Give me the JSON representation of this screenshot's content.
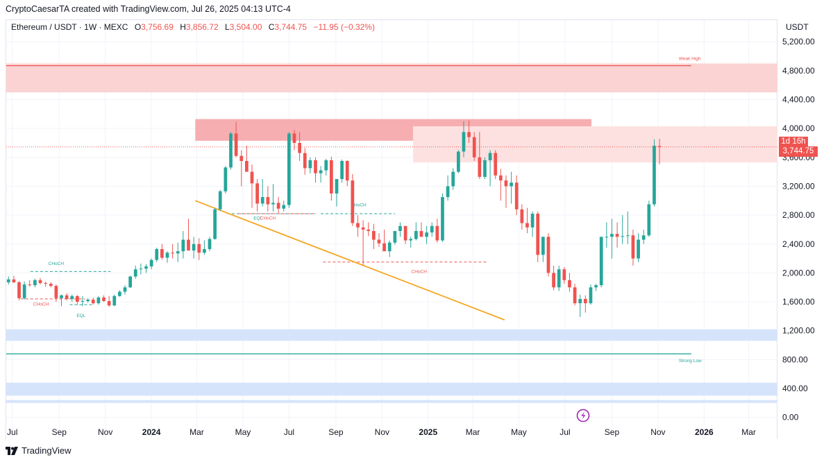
{
  "header": {
    "credit": "CryptoCaesarTA created with TradingView.com, Jul 26, 2025 04:13 UTC-4"
  },
  "legend": {
    "symbol": "Ethereum / USDT · 1W · MEXC",
    "open_label": "O",
    "open": "3,756.69",
    "high_label": "H",
    "high": "3,856.72",
    "low_label": "L",
    "low": "3,504.00",
    "close_label": "C",
    "close": "3,744.75",
    "change": "−11.95 (−0.32%)"
  },
  "currency": "USDT",
  "badges": {
    "countdown": "1d 16h",
    "last_price": "3,744.75"
  },
  "footer": {
    "brand": "TradingView"
  },
  "colors": {
    "up": "#26a69a",
    "down": "#ef5350",
    "trendline": "#f5a623",
    "supply_zone": "#fbd3d3",
    "demand_zone": "#d6e4fb",
    "grid": "#f0f3fa"
  },
  "chart_data": {
    "type": "candlestick",
    "symbol": "Ethereum / USDT",
    "interval": "1W",
    "exchange": "MEXC",
    "y_axis": {
      "position": "right",
      "range": [
        -80,
        5500
      ],
      "ticks": [
        "5,200.00",
        "4,800.00",
        "4,400.00",
        "4,000.00",
        "3,600.00",
        "3,200.00",
        "2,800.00",
        "2,400.00",
        "2,000.00",
        "1,600.00",
        "1,200.00",
        "800.00",
        "400.00",
        "0.00"
      ],
      "tick_values": [
        5200,
        4800,
        4400,
        4000,
        3600,
        3200,
        2800,
        2400,
        2000,
        1600,
        1200,
        800,
        400,
        0
      ]
    },
    "x_axis": {
      "range": [
        "2023-06-23",
        "2026-04-08"
      ],
      "ticks": [
        {
          "label": "Jul",
          "date": "2023-07-01",
          "bold": false
        },
        {
          "label": "Sep",
          "date": "2023-09-01",
          "bold": false
        },
        {
          "label": "Nov",
          "date": "2023-11-01",
          "bold": false
        },
        {
          "label": "2024",
          "date": "2024-01-01",
          "bold": true
        },
        {
          "label": "Mar",
          "date": "2024-03-01",
          "bold": false
        },
        {
          "label": "May",
          "date": "2024-05-01",
          "bold": false
        },
        {
          "label": "Jul",
          "date": "2024-07-01",
          "bold": false
        },
        {
          "label": "Sep",
          "date": "2024-09-01",
          "bold": false
        },
        {
          "label": "Nov",
          "date": "2024-11-01",
          "bold": false
        },
        {
          "label": "2025",
          "date": "2025-01-01",
          "bold": true
        },
        {
          "label": "Mar",
          "date": "2025-03-01",
          "bold": false
        },
        {
          "label": "May",
          "date": "2025-05-01",
          "bold": false
        },
        {
          "label": "Jul",
          "date": "2025-07-01",
          "bold": false
        },
        {
          "label": "Sep",
          "date": "2025-09-01",
          "bold": false
        },
        {
          "label": "Nov",
          "date": "2025-11-01",
          "bold": false
        },
        {
          "label": "2026",
          "date": "2026-01-01",
          "bold": true
        },
        {
          "label": "Mar",
          "date": "2026-03-01",
          "bold": false
        }
      ]
    },
    "grid": true,
    "first_candle_date": "2023-06-26",
    "candle_interval_days": 7,
    "candles": [
      [
        1870,
        1950,
        1840,
        1910
      ],
      [
        1910,
        1960,
        1860,
        1870
      ],
      [
        1870,
        1890,
        1620,
        1650
      ],
      [
        1650,
        1880,
        1630,
        1840
      ],
      [
        1840,
        1900,
        1810,
        1830
      ],
      [
        1830,
        1920,
        1800,
        1900
      ],
      [
        1900,
        1930,
        1840,
        1860
      ],
      [
        1860,
        1880,
        1810,
        1850
      ],
      [
        1850,
        1870,
        1800,
        1820
      ],
      [
        1820,
        1840,
        1600,
        1650
      ],
      [
        1650,
        1700,
        1540,
        1690
      ],
      [
        1690,
        1720,
        1620,
        1640
      ],
      [
        1640,
        1700,
        1600,
        1680
      ],
      [
        1680,
        1690,
        1560,
        1600
      ],
      [
        1600,
        1680,
        1540,
        1610
      ],
      [
        1610,
        1650,
        1590,
        1630
      ],
      [
        1630,
        1660,
        1560,
        1580
      ],
      [
        1580,
        1680,
        1560,
        1660
      ],
      [
        1660,
        1690,
        1600,
        1610
      ],
      [
        1610,
        1680,
        1530,
        1550
      ],
      [
        1550,
        1700,
        1540,
        1680
      ],
      [
        1680,
        1760,
        1670,
        1740
      ],
      [
        1740,
        1830,
        1700,
        1800
      ],
      [
        1800,
        1960,
        1790,
        1950
      ],
      [
        1950,
        2100,
        1920,
        2050
      ],
      [
        2050,
        2130,
        1980,
        2060
      ],
      [
        2060,
        2120,
        2000,
        2090
      ],
      [
        2090,
        2200,
        2050,
        2180
      ],
      [
        2180,
        2350,
        2150,
        2330
      ],
      [
        2330,
        2400,
        2180,
        2210
      ],
      [
        2210,
        2300,
        2140,
        2280
      ],
      [
        2280,
        2400,
        2200,
        2270
      ],
      [
        2270,
        2420,
        2150,
        2300
      ],
      [
        2300,
        2580,
        2200,
        2460
      ],
      [
        2460,
        2750,
        2340,
        2310
      ],
      [
        2310,
        2500,
        2200,
        2400
      ],
      [
        2400,
        2480,
        2180,
        2280
      ],
      [
        2280,
        2450,
        2250,
        2330
      ],
      [
        2330,
        2500,
        2300,
        2470
      ],
      [
        2470,
        2900,
        2460,
        2880
      ],
      [
        2880,
        3150,
        2860,
        3130
      ],
      [
        3130,
        3480,
        3100,
        3460
      ],
      [
        3460,
        3950,
        3430,
        3930
      ],
      [
        3930,
        4090,
        3600,
        3620
      ],
      [
        3620,
        3700,
        3200,
        3550
      ],
      [
        3550,
        3760,
        3450,
        3400
      ],
      [
        3400,
        3500,
        2900,
        3240
      ],
      [
        3240,
        3300,
        2850,
        2960
      ],
      [
        2960,
        3300,
        2920,
        3050
      ],
      [
        3050,
        3200,
        2850,
        2950
      ],
      [
        2950,
        3230,
        2850,
        2970
      ],
      [
        2970,
        3050,
        2830,
        2890
      ],
      [
        2890,
        3000,
        2850,
        2940
      ],
      [
        2940,
        3950,
        2900,
        3930
      ],
      [
        3930,
        3980,
        3700,
        3800
      ],
      [
        3800,
        3950,
        3550,
        3660
      ],
      [
        3660,
        3730,
        3360,
        3450
      ],
      [
        3450,
        3600,
        3380,
        3560
      ],
      [
        3560,
        3600,
        3250,
        3380
      ],
      [
        3380,
        3480,
        3250,
        3420
      ],
      [
        3420,
        3580,
        3350,
        3560
      ],
      [
        3560,
        3610,
        3000,
        3100
      ],
      [
        3100,
        3300,
        2920,
        3300
      ],
      [
        3300,
        3570,
        3250,
        3550
      ],
      [
        3550,
        3560,
        3200,
        3280
      ],
      [
        3280,
        3370,
        2650,
        2690
      ],
      [
        2690,
        2800,
        2500,
        2630
      ],
      [
        2630,
        2730,
        2110,
        2600
      ],
      [
        2600,
        2700,
        2510,
        2580
      ],
      [
        2580,
        2680,
        2330,
        2460
      ],
      [
        2460,
        2550,
        2360,
        2410
      ],
      [
        2410,
        2600,
        2300,
        2300
      ],
      [
        2300,
        2450,
        2220,
        2420
      ],
      [
        2420,
        2550,
        2390,
        2580
      ],
      [
        2580,
        2700,
        2500,
        2650
      ],
      [
        2650,
        2650,
        2400,
        2450
      ],
      [
        2450,
        2500,
        2350,
        2470
      ],
      [
        2470,
        2700,
        2450,
        2580
      ],
      [
        2580,
        2700,
        2500,
        2500
      ],
      [
        2500,
        2650,
        2400,
        2560
      ],
      [
        2560,
        2700,
        2500,
        2650
      ],
      [
        2650,
        2750,
        2420,
        2450
      ],
      [
        2450,
        3100,
        2430,
        3050
      ],
      [
        3050,
        3350,
        3000,
        3200
      ],
      [
        3200,
        3450,
        3150,
        3400
      ],
      [
        3400,
        3700,
        3380,
        3680
      ],
      [
        3680,
        4100,
        3600,
        3950
      ],
      [
        3950,
        4110,
        3800,
        3880
      ],
      [
        3880,
        3950,
        3550,
        3600
      ],
      [
        3600,
        3950,
        3300,
        3330
      ],
      [
        3330,
        3600,
        3300,
        3560
      ],
      [
        3560,
        3700,
        3200,
        3660
      ],
      [
        3660,
        3700,
        3300,
        3350
      ],
      [
        3350,
        3440,
        3000,
        3280
      ],
      [
        3280,
        3350,
        2900,
        3200
      ],
      [
        3200,
        3400,
        2960,
        3250
      ],
      [
        3250,
        3350,
        2800,
        2880
      ],
      [
        2880,
        2950,
        2600,
        2690
      ],
      [
        2690,
        2900,
        2550,
        2630
      ],
      [
        2630,
        2850,
        2500,
        2820
      ],
      [
        2820,
        2850,
        2150,
        2250
      ],
      [
        2250,
        2500,
        2150,
        2500
      ],
      [
        2500,
        2550,
        1950,
        2000
      ],
      [
        2000,
        2100,
        1760,
        1800
      ],
      [
        1800,
        2100,
        1750,
        2050
      ],
      [
        2050,
        2080,
        1850,
        1900
      ],
      [
        1900,
        2000,
        1740,
        1800
      ],
      [
        1800,
        1850,
        1550,
        1580
      ],
      [
        1580,
        1700,
        1390,
        1640
      ],
      [
        1640,
        1690,
        1450,
        1580
      ],
      [
        1580,
        1840,
        1560,
        1800
      ],
      [
        1800,
        1850,
        1750,
        1830
      ],
      [
        1830,
        2450,
        1800,
        2500
      ],
      [
        2500,
        2700,
        2350,
        2500
      ],
      [
        2500,
        2750,
        2200,
        2540
      ],
      [
        2540,
        2700,
        2350,
        2500
      ],
      [
        2500,
        2800,
        2400,
        2510
      ],
      [
        2510,
        2850,
        2400,
        2520
      ],
      [
        2520,
        2600,
        2100,
        2200
      ],
      [
        2200,
        2550,
        2150,
        2460
      ],
      [
        2460,
        2600,
        2400,
        2520
      ],
      [
        2520,
        3000,
        2500,
        2950
      ],
      [
        2950,
        3850,
        2920,
        3760
      ],
      [
        3756.69,
        3856.72,
        3504,
        3744.75
      ]
    ],
    "zones": [
      {
        "kind": "supply",
        "from": "2023-06-23",
        "to": "2026-04-08",
        "low": 4500,
        "high": 4900,
        "color": "#fbd3d3"
      },
      {
        "kind": "supply",
        "from": "2024-02-28",
        "to": "2025-08-05",
        "low": 3830,
        "high": 4130,
        "color": "#f6aeb1"
      },
      {
        "kind": "supply",
        "from": "2024-12-12",
        "to": "2026-04-08",
        "low": 3530,
        "high": 4030,
        "color": "#fde1e1"
      },
      {
        "kind": "demand",
        "from": "2023-06-23",
        "to": "2026-04-08",
        "low": 1060,
        "high": 1220,
        "color": "#d6e4fb"
      },
      {
        "kind": "demand",
        "from": "2023-06-23",
        "to": "2026-04-08",
        "low": 300,
        "high": 480,
        "color": "#d6e4fb"
      },
      {
        "kind": "demand",
        "from": "2023-06-23",
        "to": "2026-04-08",
        "low": 200,
        "high": 240,
        "color": "#d6e4fb"
      }
    ],
    "levels": [
      {
        "label": "Weak High",
        "price": 4870,
        "from": "2023-06-23",
        "to": "2025-12-15",
        "color": "#ef5350"
      },
      {
        "label": "Strong Low",
        "price": 880,
        "from": "2023-06-23",
        "to": "2025-12-15",
        "color": "#26a69a"
      }
    ],
    "current_price_line": 3744.75,
    "trendline": {
      "from": [
        "2024-02-28",
        3000
      ],
      "to": [
        "2025-04-12",
        1350
      ],
      "color": "#f5a623"
    },
    "structure_lines": [
      {
        "label": "CHoCH",
        "from": "2023-07-25",
        "to": "2023-11-08",
        "price": 2020,
        "color": "#26a69a",
        "label_at": "2023-08-28"
      },
      {
        "label": "CHoCH",
        "from": "2023-07-12",
        "to": "2023-10-05",
        "price": 1640,
        "color": "#ef5350",
        "label_at": "2023-08-08"
      },
      {
        "label": "EQL",
        "from": "2023-09-15",
        "to": "2023-10-15",
        "price": 1560,
        "color": "#26a69a",
        "label_at": "2023-09-30",
        "label_price": 1390
      },
      {
        "label": "EQL",
        "from": "2024-04-10",
        "to": "2024-08-05",
        "price": 2820,
        "color": "#26a69a",
        "label_at": "2024-05-21",
        "label_price": 2740
      },
      {
        "label": "CHoCH",
        "from": "2024-04-25",
        "to": "2024-08-05",
        "price": 2820,
        "color": "#ef5350",
        "label_at": "2024-06-03",
        "label_price": 2740
      },
      {
        "label": "CHoCH",
        "from": "2024-08-12",
        "to": "2024-11-18",
        "price": 2820,
        "color": "#26a69a",
        "label_at": "2024-10-01",
        "label_price": 2920
      },
      {
        "label": "CHoCH",
        "from": "2024-08-15",
        "to": "2025-03-20",
        "price": 2150,
        "color": "#ef5350",
        "label_at": "2024-12-20",
        "label_price": 2000
      }
    ]
  }
}
